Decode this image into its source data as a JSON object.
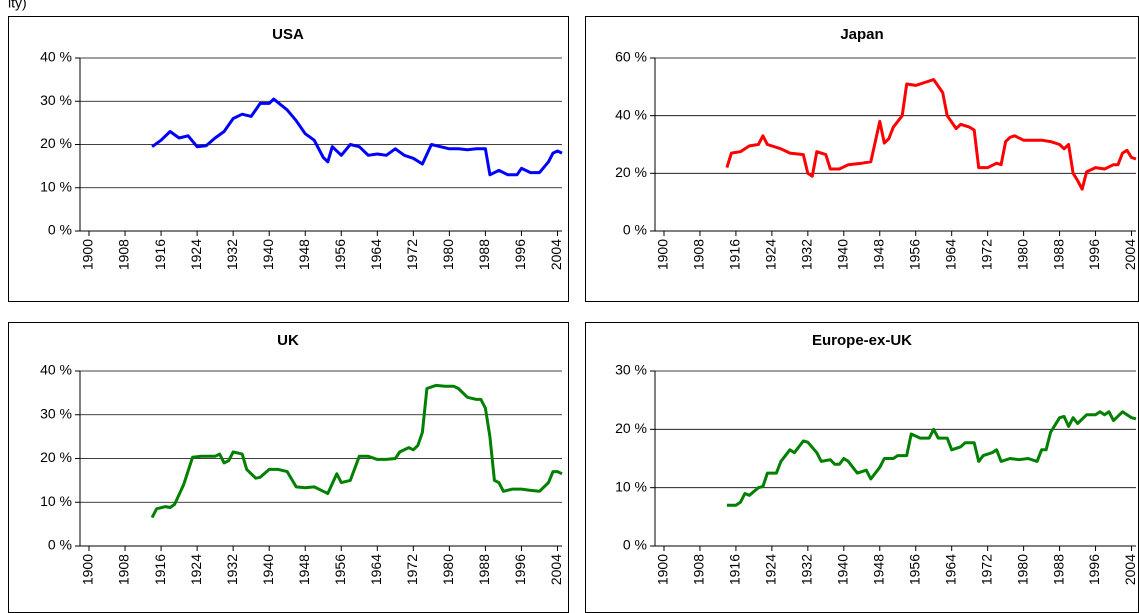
{
  "caption": "ity)",
  "chart_data": [
    {
      "type": "line",
      "title": "USA",
      "x": [
        1914,
        1916,
        1918,
        1920,
        1922,
        1924,
        1926,
        1928,
        1930,
        1932,
        1934,
        1936,
        1938,
        1940,
        1941,
        1944,
        1946,
        1948,
        1950,
        1952,
        1953,
        1954,
        1956,
        1958,
        1960,
        1962,
        1964,
        1966,
        1968,
        1970,
        1972,
        1974,
        1976,
        1978,
        1980,
        1982,
        1984,
        1986,
        1988,
        1989,
        1991,
        1993,
        1995,
        1996,
        1998,
        2000,
        2002,
        2003,
        2004,
        2005
      ],
      "series": [
        {
          "color": "#0000ff",
          "values": [
            19.5,
            21,
            23,
            21.5,
            22,
            19.5,
            19.7,
            21.5,
            23,
            26,
            27,
            26.5,
            29.5,
            29.5,
            30.5,
            28,
            25.5,
            22.5,
            21,
            17,
            16,
            19.5,
            17.5,
            20,
            19.5,
            17.5,
            17.8,
            17.5,
            19,
            17.5,
            16.8,
            15.5,
            20,
            19.5,
            19,
            19,
            18.8,
            19,
            19,
            13,
            14,
            13,
            13,
            14.5,
            13.5,
            13.5,
            16,
            18,
            18.5,
            18
          ]
        }
      ],
      "xlim": [
        1898,
        2005
      ],
      "xticks": [
        1900,
        1908,
        1916,
        1924,
        1932,
        1940,
        1948,
        1956,
        1964,
        1972,
        1980,
        1988,
        1996,
        2004
      ],
      "ylim": [
        0,
        40
      ],
      "yticks": [
        {
          "value": 0,
          "label": "0 %"
        },
        {
          "value": 10,
          "label": "10 %"
        },
        {
          "value": 20,
          "label": "20 %"
        },
        {
          "value": 30,
          "label": "30 %"
        },
        {
          "value": 40,
          "label": "40 %"
        }
      ],
      "grid": true
    },
    {
      "type": "line",
      "title": "Japan",
      "x": [
        1914,
        1915,
        1917,
        1919,
        1921,
        1922,
        1923,
        1926,
        1928,
        1931,
        1932,
        1933,
        1934,
        1936,
        1937,
        1939,
        1941,
        1944,
        1946,
        1948,
        1949,
        1950,
        1951,
        1953,
        1954,
        1956,
        1958,
        1960,
        1962,
        1963,
        1965,
        1966,
        1968,
        1969,
        1970,
        1972,
        1974,
        1975,
        1976,
        1977,
        1978,
        1980,
        1984,
        1986,
        1988,
        1989,
        1990,
        1991,
        1992,
        1993,
        1994,
        1996,
        1998,
        2000,
        2001,
        2002,
        2003,
        2004,
        2005
      ],
      "series": [
        {
          "color": "#ff0000",
          "values": [
            22,
            27,
            27.5,
            29.5,
            30,
            33,
            30,
            28.5,
            27,
            26.5,
            20,
            19,
            27.5,
            26.5,
            21.5,
            21.5,
            23,
            23.5,
            24,
            38,
            30.5,
            32,
            36,
            40,
            51,
            50.5,
            51.5,
            52.5,
            48,
            40,
            35.5,
            37,
            36,
            35,
            22,
            22,
            23.5,
            23,
            31,
            32.5,
            33,
            31.5,
            31.5,
            31,
            30,
            28.5,
            30,
            20,
            17.5,
            14.5,
            20.5,
            22,
            21.5,
            23,
            23,
            27,
            28,
            25.5,
            25
          ]
        }
      ],
      "xlim": [
        1898,
        2005
      ],
      "xticks": [
        1900,
        1908,
        1916,
        1924,
        1932,
        1940,
        1948,
        1956,
        1964,
        1972,
        1980,
        1988,
        1996,
        2004
      ],
      "ylim": [
        0,
        60
      ],
      "yticks": [
        {
          "value": 0,
          "label": "0 %"
        },
        {
          "value": 20,
          "label": "20 %"
        },
        {
          "value": 40,
          "label": "40 %"
        },
        {
          "value": 60,
          "label": "60 %"
        }
      ],
      "grid": true
    },
    {
      "type": "line",
      "title": "UK",
      "x": [
        1914,
        1915,
        1917,
        1918,
        1919,
        1921,
        1923,
        1925,
        1928,
        1929,
        1930,
        1931,
        1932,
        1934,
        1935,
        1937,
        1938,
        1940,
        1942,
        1944,
        1946,
        1948,
        1950,
        1952,
        1953,
        1955,
        1956,
        1958,
        1960,
        1962,
        1964,
        1966,
        1968,
        1969,
        1971,
        1972,
        1973,
        1974,
        1975,
        1977,
        1979,
        1981,
        1982,
        1984,
        1986,
        1987,
        1988,
        1989,
        1990,
        1991,
        1992,
        1994,
        1996,
        1998,
        2000,
        2002,
        2003,
        2004,
        2005
      ],
      "series": [
        {
          "color": "#008000",
          "values": [
            6.5,
            8.5,
            9,
            8.8,
            9.5,
            14,
            20.3,
            20.5,
            20.5,
            21,
            19,
            19.5,
            21.5,
            21,
            17.5,
            15.5,
            15.7,
            17.5,
            17.5,
            17,
            13.5,
            13.3,
            13.5,
            12.5,
            12,
            16.5,
            14.5,
            15,
            20.5,
            20.5,
            19.8,
            19.8,
            20,
            21.5,
            22.5,
            22,
            23,
            26,
            36,
            36.7,
            36.5,
            36.5,
            36,
            34,
            33.5,
            33.5,
            31.5,
            25,
            15,
            14.5,
            12.5,
            13,
            13,
            12.7,
            12.5,
            14.5,
            17,
            17,
            16.5
          ]
        }
      ],
      "xlim": [
        1898,
        2005
      ],
      "xticks": [
        1900,
        1908,
        1916,
        1924,
        1932,
        1940,
        1948,
        1956,
        1964,
        1972,
        1980,
        1988,
        1996,
        2004
      ],
      "ylim": [
        0,
        40
      ],
      "yticks": [
        {
          "value": 0,
          "label": "0 %"
        },
        {
          "value": 10,
          "label": "10 %"
        },
        {
          "value": 20,
          "label": "20 %"
        },
        {
          "value": 30,
          "label": "30 %"
        },
        {
          "value": 40,
          "label": "40 %"
        }
      ],
      "grid": true
    },
    {
      "type": "line",
      "title": "Europe-ex-UK",
      "x": [
        1914,
        1916,
        1917,
        1918,
        1919,
        1921,
        1922,
        1923,
        1925,
        1926,
        1928,
        1929,
        1931,
        1932,
        1934,
        1935,
        1937,
        1938,
        1939,
        1940,
        1941,
        1943,
        1945,
        1946,
        1948,
        1949,
        1951,
        1952,
        1954,
        1955,
        1957,
        1959,
        1960,
        1961,
        1963,
        1964,
        1966,
        1967,
        1969,
        1970,
        1971,
        1973,
        1974,
        1975,
        1977,
        1979,
        1981,
        1983,
        1984,
        1985,
        1986,
        1988,
        1989,
        1990,
        1991,
        1992,
        1994,
        1996,
        1997,
        1998,
        1999,
        2000,
        2002,
        2003,
        2004,
        2005
      ],
      "series": [
        {
          "color": "#008000",
          "values": [
            7,
            7,
            7.5,
            9,
            8.7,
            10,
            10.2,
            12.5,
            12.5,
            14.5,
            16.5,
            16,
            18,
            17.8,
            16,
            14.5,
            14.8,
            14,
            14,
            15,
            14.5,
            12.5,
            13,
            11.5,
            13.5,
            15,
            15,
            15.5,
            15.5,
            19.2,
            18.5,
            18.5,
            20,
            18.5,
            18.5,
            16.5,
            17,
            17.7,
            17.7,
            14.5,
            15.5,
            16,
            16.5,
            14.5,
            15,
            14.8,
            15,
            14.5,
            16.5,
            16.5,
            19.5,
            22,
            22.2,
            20.5,
            22,
            21,
            22.5,
            22.5,
            23,
            22.5,
            23,
            21.5,
            23,
            22.5,
            22,
            21.8
          ]
        }
      ],
      "xlim": [
        1898,
        2005
      ],
      "xticks": [
        1900,
        1908,
        1916,
        1924,
        1932,
        1940,
        1948,
        1956,
        1964,
        1972,
        1980,
        1988,
        1996,
        2004
      ],
      "ylim": [
        0,
        30
      ],
      "yticks": [
        {
          "value": 0,
          "label": "0 %"
        },
        {
          "value": 10,
          "label": "10 %"
        },
        {
          "value": 20,
          "label": "20 %"
        },
        {
          "value": 30,
          "label": "30 %"
        }
      ],
      "grid": true
    }
  ]
}
